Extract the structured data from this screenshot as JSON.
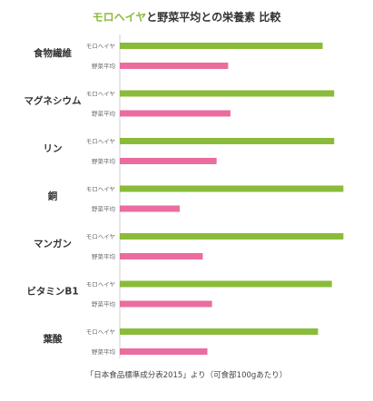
{
  "chart_data": {
    "type": "bar",
    "orientation": "horizontal",
    "title_highlight": "モロヘイヤ",
    "title_rest": "と野菜平均との栄養素 比較",
    "categories": [
      "食物繊維",
      "マグネシウム",
      "リン",
      "銅",
      "マンガン",
      "ビタミンB1",
      "葉酸"
    ],
    "series": [
      {
        "name": "モロヘイヤ",
        "color": "#8bbb3a",
        "values": [
          0.88,
          0.93,
          0.93,
          0.97,
          0.97,
          0.92,
          0.86
        ]
      },
      {
        "name": "野菜平均",
        "color": "#eb6c9f",
        "values": [
          0.47,
          0.48,
          0.42,
          0.26,
          0.36,
          0.4,
          0.38
        ]
      }
    ],
    "xlim": [
      0,
      1
    ],
    "grid": false,
    "legend": "none",
    "source": "「日本食品標準成分表2015」より（可食部100gあたり）"
  }
}
